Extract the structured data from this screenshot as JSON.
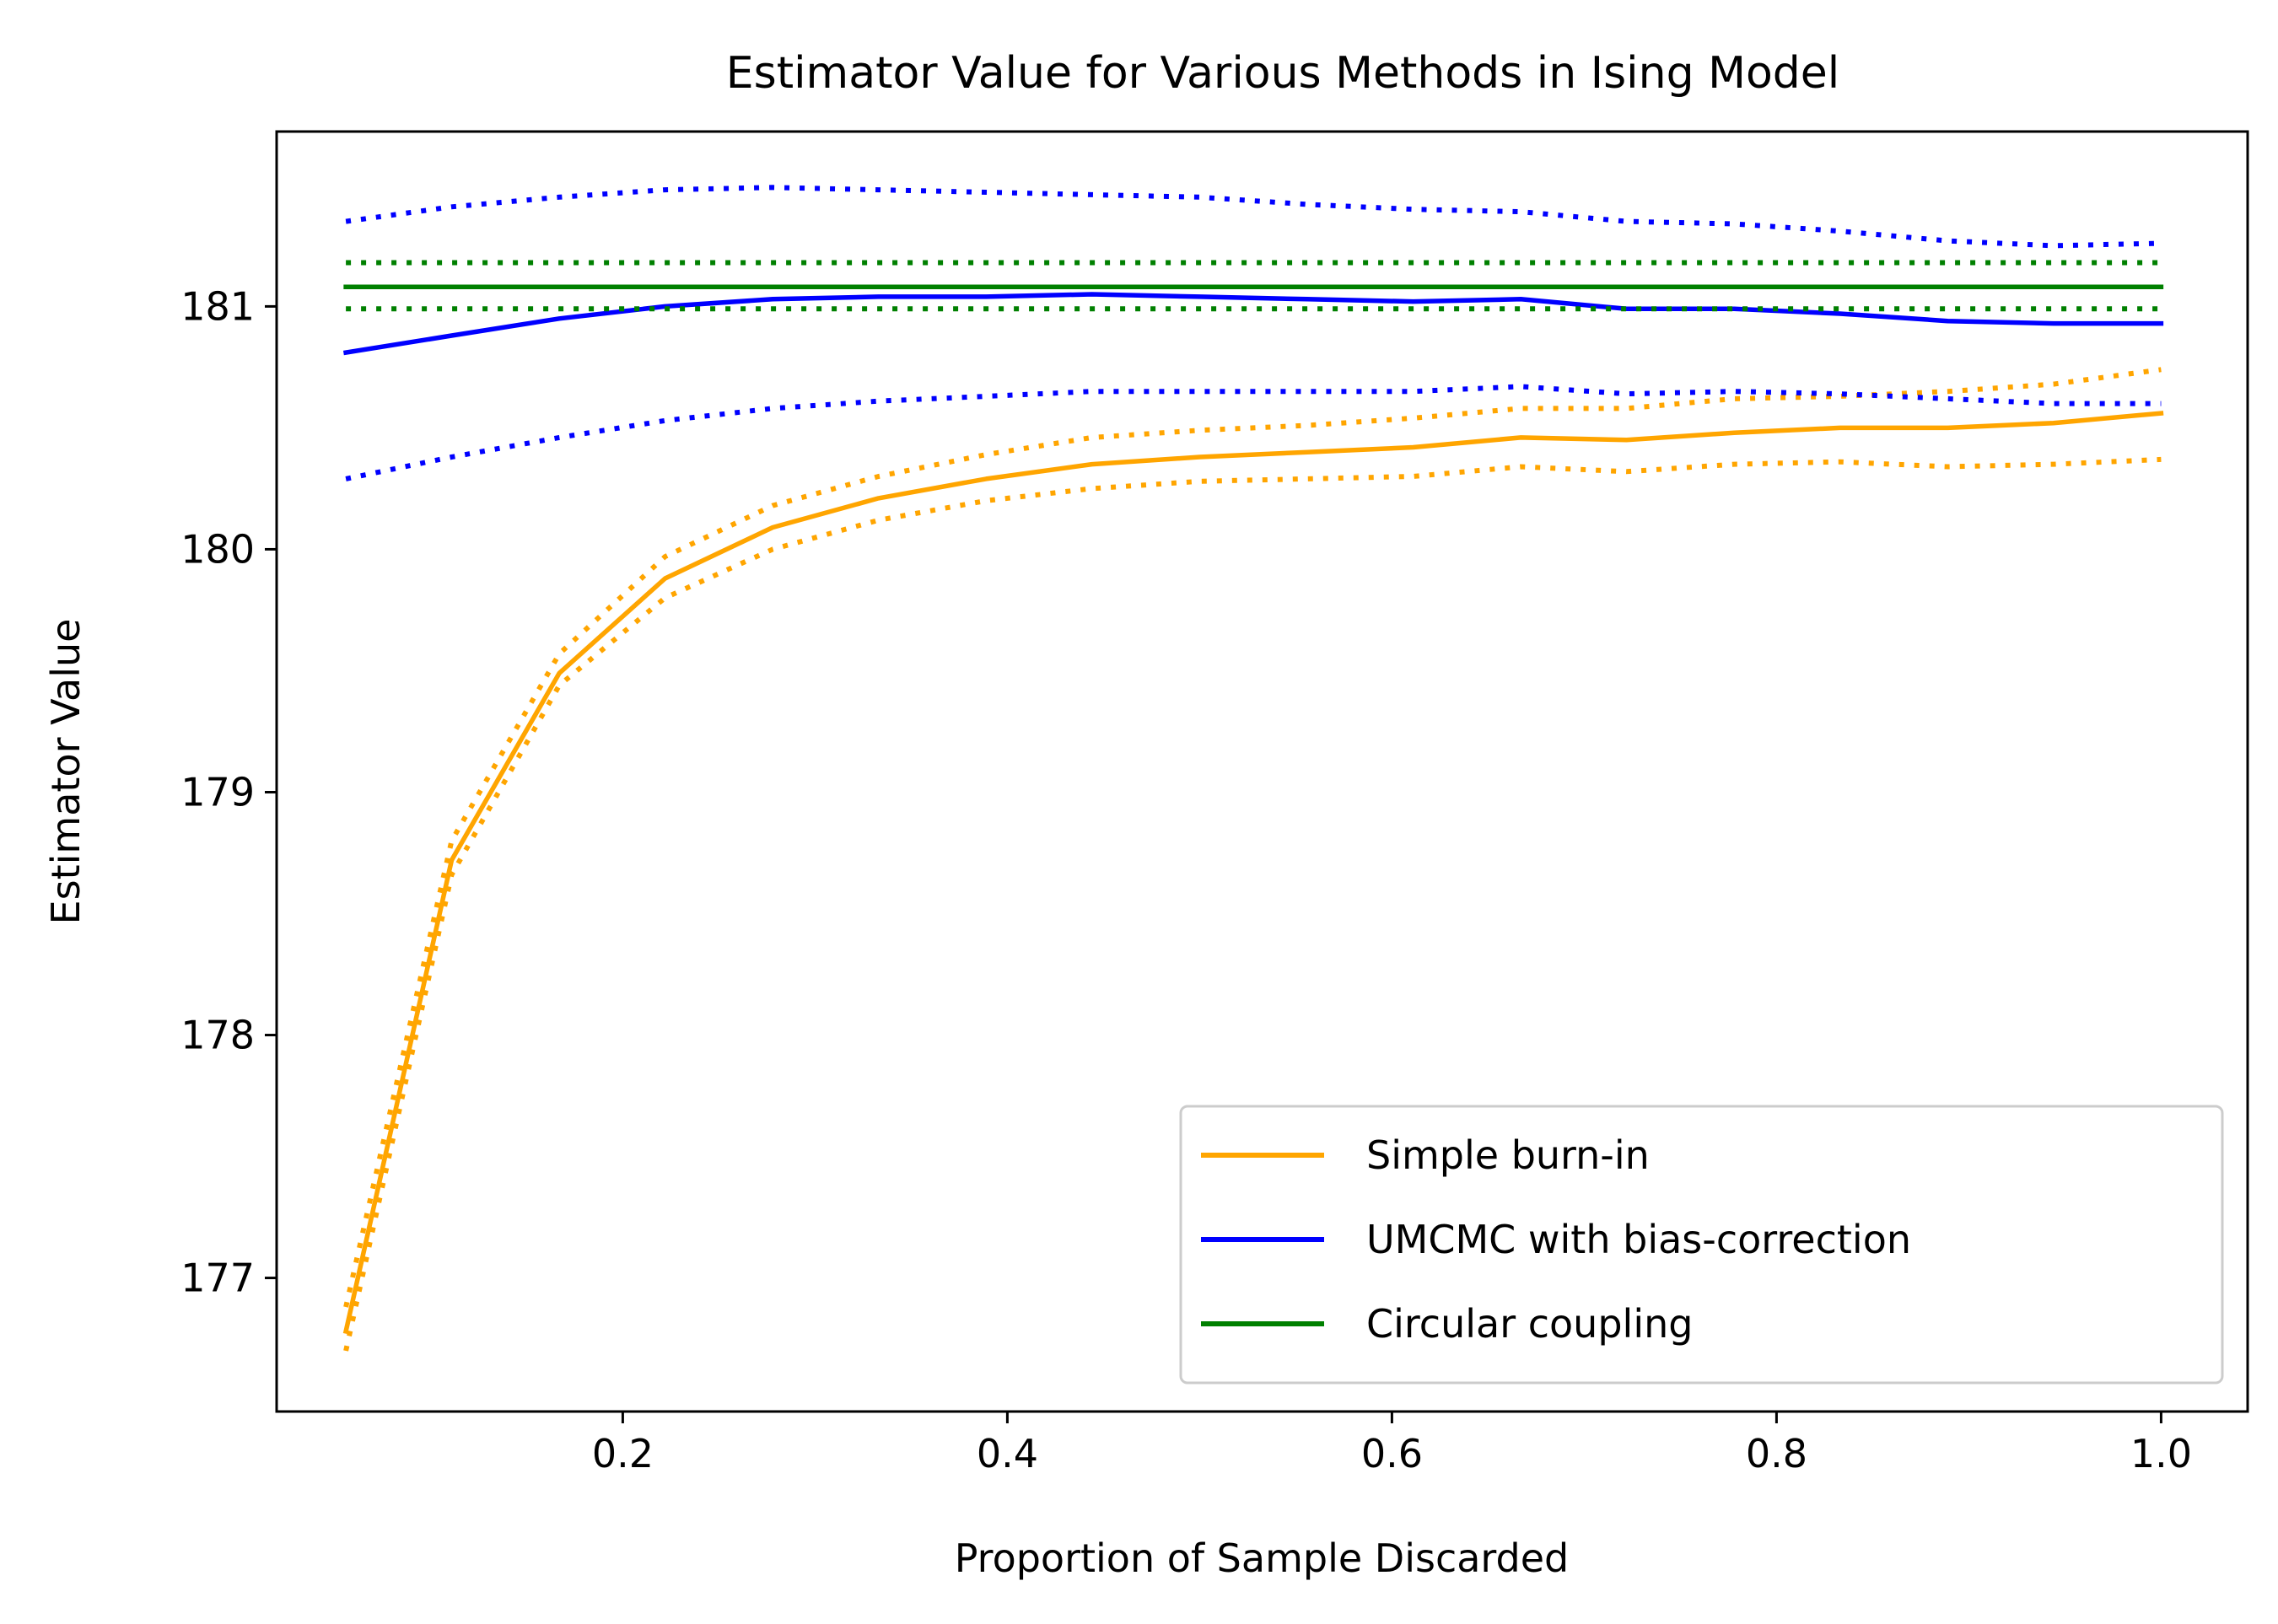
{
  "chart_data": {
    "type": "line",
    "title": "Estimator Value for Various Methods in Ising Model",
    "xlabel": "Proportion of Sample Discarded",
    "ylabel": "Estimator Value",
    "xlim": [
      0.02,
      1.045
    ],
    "ylim": [
      176.45,
      181.72
    ],
    "xticks": [
      0.2,
      0.4,
      0.6,
      0.8,
      1.0
    ],
    "xtick_labels": [
      "0.2",
      "0.4",
      "0.6",
      "0.8",
      "1.0"
    ],
    "yticks": [
      177,
      178,
      179,
      180,
      181
    ],
    "ytick_labels": [
      "177",
      "178",
      "179",
      "180",
      "181"
    ],
    "grid": false,
    "legend_position": "lower-right",
    "x": [
      0.056,
      0.111,
      0.167,
      0.222,
      0.278,
      0.333,
      0.389,
      0.444,
      0.5,
      0.556,
      0.611,
      0.667,
      0.722,
      0.778,
      0.833,
      0.889,
      0.944,
      1.0
    ],
    "series": [
      {
        "name": "Simple burn-in",
        "color": "#ffa500",
        "values": [
          176.78,
          178.72,
          179.49,
          179.88,
          180.09,
          180.21,
          180.29,
          180.35,
          180.38,
          180.4,
          180.42,
          180.46,
          180.45,
          180.48,
          180.5,
          180.5,
          180.52,
          180.56
        ],
        "lower": [
          176.7,
          178.66,
          179.44,
          179.8,
          180.0,
          180.12,
          180.2,
          180.25,
          180.28,
          180.29,
          180.3,
          180.34,
          180.32,
          180.35,
          180.36,
          180.34,
          180.35,
          180.37
        ],
        "upper": [
          176.88,
          178.8,
          179.57,
          179.97,
          180.18,
          180.3,
          180.39,
          180.46,
          180.49,
          180.51,
          180.54,
          180.58,
          180.58,
          180.62,
          180.63,
          180.65,
          180.68,
          180.74
        ]
      },
      {
        "name": "UMCMC with bias-correction",
        "color": "#0000ff",
        "values": [
          180.81,
          180.88,
          180.95,
          181.0,
          181.03,
          181.04,
          181.04,
          181.05,
          181.04,
          181.03,
          181.02,
          181.03,
          180.99,
          180.99,
          180.97,
          180.94,
          180.93,
          180.93
        ],
        "lower": [
          180.29,
          180.38,
          180.46,
          180.53,
          180.58,
          180.61,
          180.63,
          180.65,
          180.65,
          180.65,
          180.65,
          180.67,
          180.64,
          180.65,
          180.64,
          180.62,
          180.6,
          180.6
        ],
        "upper": [
          181.35,
          181.41,
          181.45,
          181.48,
          181.49,
          181.48,
          181.47,
          181.46,
          181.45,
          181.42,
          181.4,
          181.39,
          181.35,
          181.34,
          181.31,
          181.27,
          181.25,
          181.26
        ]
      },
      {
        "name": "Circular coupling",
        "color": "#008000",
        "values": [
          181.08,
          181.08,
          181.08,
          181.08,
          181.08,
          181.08,
          181.08,
          181.08,
          181.08,
          181.08,
          181.08,
          181.08,
          181.08,
          181.08,
          181.08,
          181.08,
          181.08,
          181.08
        ],
        "lower": [
          180.99,
          180.99,
          180.99,
          180.99,
          180.99,
          180.99,
          180.99,
          180.99,
          180.99,
          180.99,
          180.99,
          180.99,
          180.99,
          180.99,
          180.99,
          180.99,
          180.99,
          180.99
        ],
        "upper": [
          181.18,
          181.18,
          181.18,
          181.18,
          181.18,
          181.18,
          181.18,
          181.18,
          181.18,
          181.18,
          181.18,
          181.18,
          181.18,
          181.18,
          181.18,
          181.18,
          181.18,
          181.18
        ]
      }
    ]
  }
}
